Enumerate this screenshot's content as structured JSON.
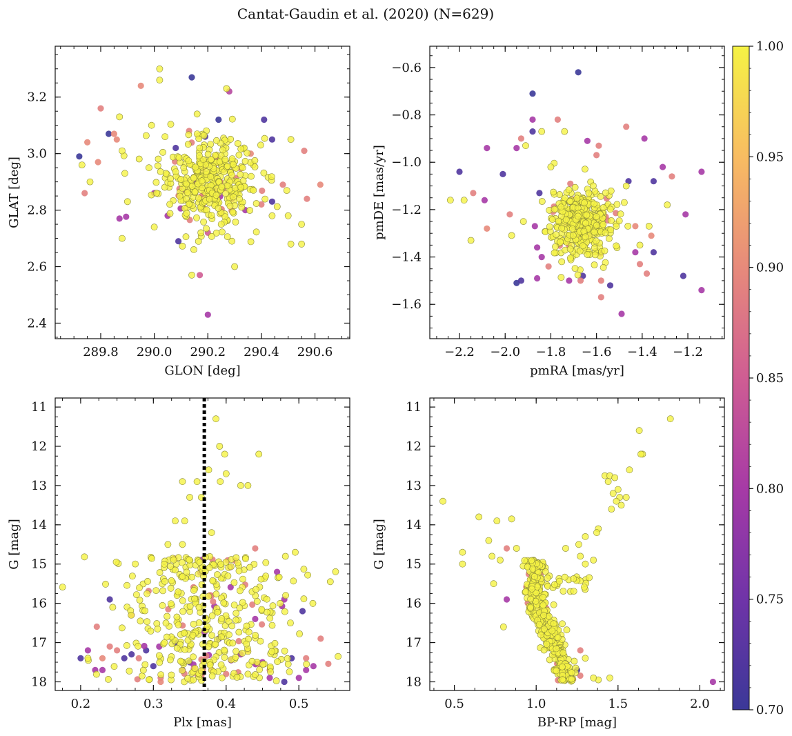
{
  "figure": {
    "title": "Cantat-Gaudin et al. (2020) (N=629)"
  },
  "colorbar": {
    "min": 0.7,
    "max": 1.0,
    "ticks": [
      "0.70",
      "0.75",
      "0.80",
      "0.85",
      "0.90",
      "0.95",
      "1.00"
    ],
    "colors": [
      "#3b3898",
      "#6f34a8",
      "#a63aa6",
      "#cf5d93",
      "#e78a7b",
      "#f8bc62",
      "#f5f244"
    ]
  },
  "chart_data": [
    {
      "id": "glon-glat",
      "type": "scatter",
      "title": "",
      "xlabel": "GLON [deg]",
      "ylabel": "GLAT [deg]",
      "xlim": [
        289.63,
        290.73
      ],
      "ylim": [
        2.345,
        3.38
      ],
      "xticks": [
        289.8,
        290.0,
        290.2,
        290.4,
        290.6
      ],
      "xtick_labels": [
        "289.8",
        "290.0",
        "290.2",
        "290.4",
        "290.6"
      ],
      "yticks": [
        2.4,
        2.6,
        2.8,
        3.0,
        3.2
      ],
      "ytick_labels": [
        "2.4",
        "2.6",
        "2.8",
        "3.0",
        "3.2"
      ],
      "invert_y": false,
      "points": [
        [
          290.14,
          3.27,
          0.7
        ],
        [
          290.02,
          3.3,
          1.0
        ],
        [
          290.02,
          3.26,
          1.0
        ],
        [
          289.95,
          3.24,
          0.9
        ],
        [
          290.27,
          3.23,
          1.0
        ],
        [
          290.28,
          3.22,
          0.82
        ],
        [
          289.8,
          3.16,
          0.89
        ],
        [
          289.87,
          3.13,
          1.0
        ],
        [
          289.99,
          3.1,
          1.0
        ],
        [
          290.16,
          3.14,
          1.0
        ],
        [
          290.24,
          3.12,
          0.7
        ],
        [
          290.41,
          3.12,
          0.72
        ],
        [
          289.83,
          3.07,
          0.7
        ],
        [
          289.85,
          3.07,
          0.9
        ],
        [
          289.75,
          3.04,
          0.9
        ],
        [
          289.86,
          3.05,
          0.9
        ],
        [
          290.04,
          3.06,
          1.0
        ],
        [
          290.19,
          3.06,
          0.72
        ],
        [
          290.44,
          3.05,
          0.72
        ],
        [
          290.51,
          3.05,
          1.0
        ],
        [
          289.72,
          2.99,
          0.7
        ],
        [
          289.88,
          3.01,
          1.0
        ],
        [
          290.56,
          3.01,
          0.89
        ],
        [
          289.79,
          2.97,
          0.9
        ],
        [
          289.73,
          2.96,
          1.0
        ],
        [
          289.76,
          2.9,
          1.0
        ],
        [
          289.89,
          2.93,
          1.0
        ],
        [
          290.08,
          3.02,
          0.72
        ],
        [
          289.74,
          2.86,
          0.89
        ],
        [
          289.9,
          2.83,
          1.0
        ],
        [
          289.87,
          2.77,
          0.8
        ],
        [
          290.62,
          2.89,
          0.9
        ],
        [
          290.57,
          2.84,
          0.89
        ],
        [
          290.44,
          2.83,
          0.72
        ],
        [
          290.44,
          2.78,
          1.0
        ],
        [
          290.5,
          2.78,
          1.0
        ],
        [
          290.55,
          2.75,
          1.0
        ],
        [
          290.09,
          2.69,
          0.72
        ],
        [
          290.2,
          2.72,
          0.85
        ],
        [
          290.3,
          2.6,
          1.0
        ],
        [
          290.14,
          2.57,
          1.0
        ],
        [
          290.17,
          2.57,
          0.85
        ],
        [
          290.2,
          2.43,
          0.8
        ],
        [
          289.88,
          2.7,
          1.0
        ],
        [
          290.55,
          2.68,
          1.0
        ],
        [
          290.51,
          2.68,
          1.0
        ],
        [
          290.05,
          2.78,
          0.8
        ],
        [
          290.34,
          2.8,
          0.8
        ],
        [
          290.4,
          2.82,
          0.89
        ],
        [
          290.13,
          3.08,
          0.89
        ],
        [
          290.36,
          3.0,
          0.9
        ],
        [
          290.48,
          2.89,
          0.89
        ],
        [
          290.0,
          2.86,
          0.8
        ],
        [
          290.29,
          2.69,
          1.0
        ],
        [
          290.25,
          2.75,
          1.0
        ],
        [
          290.37,
          2.87,
          1.0
        ],
        [
          290.33,
          2.95,
          1.0
        ],
        [
          290.11,
          2.95,
          1.0
        ],
        [
          289.98,
          2.95,
          1.0
        ],
        [
          290.0,
          2.74,
          1.0
        ]
      ],
      "cluster": {
        "cx": 290.2,
        "cy": 2.9,
        "sx": 0.09,
        "sy": 0.08,
        "n": 380
      }
    },
    {
      "id": "pm",
      "type": "scatter",
      "title": "",
      "xlabel": "pmRA [mas/yr]",
      "ylabel": "pmDE [mas/yr]",
      "xlim": [
        -2.33,
        -1.04
      ],
      "ylim": [
        -1.745,
        -0.51
      ],
      "xticks": [
        -2.2,
        -2.0,
        -1.8,
        -1.6,
        -1.4,
        -1.2
      ],
      "xtick_labels": [
        "−2.2",
        "−2.0",
        "−1.8",
        "−1.6",
        "−1.4",
        "−1.2"
      ],
      "yticks": [
        -1.6,
        -1.4,
        -1.2,
        -1.0,
        -0.8,
        -0.6
      ],
      "ytick_labels": [
        "−1.6",
        "−1.4",
        "−1.2",
        "−1.0",
        "−0.8",
        "−0.6"
      ],
      "invert_y": false,
      "points": [
        [
          -1.68,
          -0.62,
          0.7
        ],
        [
          -1.88,
          -0.71,
          0.7
        ],
        [
          -1.88,
          -0.82,
          0.8
        ],
        [
          -1.77,
          -0.82,
          0.89
        ],
        [
          -1.88,
          -0.87,
          0.72
        ],
        [
          -1.84,
          -0.87,
          1.0
        ],
        [
          -1.74,
          -0.87,
          1.0
        ],
        [
          -1.93,
          -0.9,
          0.89
        ],
        [
          -1.64,
          -0.91,
          0.8
        ],
        [
          -1.59,
          -0.93,
          0.89
        ],
        [
          -1.47,
          -0.85,
          0.89
        ],
        [
          -1.39,
          -0.9,
          0.8
        ],
        [
          -2.08,
          -0.94,
          0.8
        ],
        [
          -1.95,
          -0.94,
          0.8
        ],
        [
          -1.91,
          -0.93,
          1.0
        ],
        [
          -2.2,
          -1.04,
          0.72
        ],
        [
          -2.01,
          -1.05,
          0.72
        ],
        [
          -1.8,
          -1.02,
          1.0
        ],
        [
          -1.31,
          -1.02,
          0.8
        ],
        [
          -1.27,
          -1.06,
          0.89
        ],
        [
          -1.14,
          -1.04,
          0.8
        ],
        [
          -1.35,
          -1.08,
          0.72
        ],
        [
          -2.24,
          -1.16,
          1.0
        ],
        [
          -2.18,
          -1.16,
          1.0
        ],
        [
          -2.14,
          -1.13,
          0.89
        ],
        [
          -2.09,
          -1.16,
          0.8
        ],
        [
          -2.08,
          -1.28,
          0.9
        ],
        [
          -2.15,
          -1.33,
          1.0
        ],
        [
          -1.98,
          -1.22,
          0.89
        ],
        [
          -1.92,
          -1.25,
          1.0
        ],
        [
          -1.21,
          -1.22,
          0.8
        ],
        [
          -1.29,
          -1.18,
          1.0
        ],
        [
          -1.36,
          -1.31,
          0.9
        ],
        [
          -1.37,
          -1.27,
          1.0
        ],
        [
          -1.35,
          -1.38,
          0.72
        ],
        [
          -1.43,
          -1.38,
          0.8
        ],
        [
          -1.41,
          -1.43,
          0.89
        ],
        [
          -1.38,
          -1.47,
          0.89
        ],
        [
          -1.22,
          -1.48,
          0.72
        ],
        [
          -1.14,
          -1.54,
          0.8
        ],
        [
          -1.49,
          -1.64,
          0.8
        ],
        [
          -1.58,
          -1.57,
          0.89
        ],
        [
          -1.54,
          -1.52,
          0.72
        ],
        [
          -1.58,
          -1.5,
          0.89
        ],
        [
          -1.67,
          -1.5,
          0.89
        ],
        [
          -1.72,
          -1.5,
          0.8
        ],
        [
          -1.66,
          -1.48,
          0.72
        ],
        [
          -1.86,
          -1.49,
          0.8
        ],
        [
          -1.93,
          -1.5,
          0.72
        ],
        [
          -1.95,
          -1.51,
          0.7
        ],
        [
          -1.81,
          -1.44,
          0.89
        ],
        [
          -1.84,
          -1.4,
          0.8
        ],
        [
          -1.86,
          -1.36,
          0.8
        ],
        [
          -1.87,
          -1.27,
          0.8
        ],
        [
          -1.43,
          -1.27,
          0.9
        ],
        [
          -1.41,
          -1.35,
          1.0
        ],
        [
          -1.46,
          -1.08,
          0.72
        ],
        [
          -1.6,
          -0.97,
          0.89
        ],
        [
          -1.47,
          -1.1,
          1.0
        ],
        [
          -1.85,
          -1.13,
          0.72
        ]
      ],
      "cluster": {
        "cx": -1.67,
        "cy": -1.25,
        "sx": 0.075,
        "sy": 0.07,
        "n": 380
      }
    },
    {
      "id": "plx-g",
      "type": "scatter",
      "title": "",
      "xlabel": "Plx [mas]",
      "ylabel": "G [mag]",
      "xlim": [
        0.165,
        0.57
      ],
      "ylim": [
        18.22,
        10.77
      ],
      "xticks": [
        0.2,
        0.3,
        0.4,
        0.5
      ],
      "xtick_labels": [
        "0.2",
        "0.3",
        "0.4",
        "0.5"
      ],
      "yticks": [
        11,
        12,
        13,
        14,
        15,
        16,
        17,
        18
      ],
      "ytick_labels": [
        "11",
        "12",
        "13",
        "14",
        "15",
        "16",
        "17",
        "18"
      ],
      "invert_y": true,
      "vline": {
        "x": 0.37,
        "style": "dotted",
        "color": "#000000"
      },
      "points": [
        [
          0.386,
          11.3,
          1.0
        ],
        [
          0.391,
          12.0,
          1.0
        ],
        [
          0.398,
          12.2,
          1.0
        ],
        [
          0.445,
          12.2,
          1.0
        ],
        [
          0.36,
          12.9,
          1.0
        ],
        [
          0.34,
          12.9,
          1.0
        ],
        [
          0.376,
          12.6,
          1.0
        ],
        [
          0.392,
          12.9,
          1.0
        ],
        [
          0.4,
          12.7,
          1.0
        ],
        [
          0.42,
          13.0,
          1.0
        ],
        [
          0.43,
          13.0,
          1.0
        ],
        [
          0.35,
          13.3,
          1.0
        ],
        [
          0.33,
          13.9,
          1.0
        ],
        [
          0.343,
          13.9,
          1.0
        ],
        [
          0.366,
          13.3,
          1.0
        ],
        [
          0.38,
          14.2,
          1.0
        ],
        [
          0.34,
          14.5,
          1.0
        ],
        [
          0.32,
          14.5,
          1.0
        ],
        [
          0.44,
          14.6,
          0.89
        ],
        [
          0.495,
          14.7,
          1.0
        ],
        [
          0.47,
          15.2,
          0.8
        ],
        [
          0.24,
          15.9,
          0.72
        ],
        [
          0.21,
          17.4,
          1.0
        ],
        [
          0.2,
          17.4,
          0.72
        ],
        [
          0.22,
          17.7,
          0.8
        ],
        [
          0.23,
          17.7,
          0.8
        ],
        [
          0.21,
          17.2,
          0.8
        ],
        [
          0.25,
          17.2,
          0.89
        ],
        [
          0.27,
          16.3,
          0.9
        ],
        [
          0.31,
          18.0,
          0.9
        ],
        [
          0.3,
          17.6,
          0.72
        ],
        [
          0.48,
          18.0,
          0.72
        ],
        [
          0.5,
          17.9,
          0.8
        ],
        [
          0.51,
          17.7,
          0.8
        ],
        [
          0.53,
          16.9,
          0.89
        ],
        [
          0.52,
          17.6,
          0.8
        ],
        [
          0.49,
          17.4,
          0.72
        ],
        [
          0.46,
          17.7,
          0.89
        ],
        [
          0.42,
          17.3,
          0.8
        ],
        [
          0.4,
          17.8,
          0.89
        ],
        [
          0.36,
          17.8,
          0.89
        ],
        [
          0.34,
          17.7,
          0.8
        ],
        [
          0.29,
          17.2,
          0.72
        ],
        [
          0.26,
          17.4,
          0.72
        ],
        [
          0.28,
          17.4,
          0.89
        ],
        [
          0.33,
          17.0,
          0.72
        ],
        [
          0.39,
          16.9,
          0.72
        ],
        [
          0.44,
          16.4,
          0.8
        ],
        [
          0.48,
          15.9,
          0.8
        ],
        [
          0.505,
          16.2,
          0.72
        ],
        [
          0.35,
          17.5,
          0.72
        ],
        [
          0.31,
          17.9,
          0.89
        ],
        [
          0.43,
          17.2,
          0.89
        ],
        [
          0.45,
          17.5,
          0.8
        ],
        [
          0.24,
          17.1,
          0.89
        ],
        [
          0.23,
          17.4,
          0.9
        ],
        [
          0.51,
          17.4,
          0.89
        ],
        [
          0.27,
          17.3,
          0.72
        ],
        [
          0.46,
          17.9,
          0.8
        ],
        [
          0.38,
          17.7,
          0.89
        ]
      ],
      "cluster": {
        "cx": 0.37,
        "cy": 16.2,
        "sx": 0.062,
        "sy": 0.9,
        "n": 400,
        "gmin": 14.8,
        "gmax": 18.0
      }
    },
    {
      "id": "cmd",
      "type": "scatter",
      "title": "",
      "xlabel": "BP-RP [mag]",
      "ylabel": "G [mag]",
      "xlim": [
        0.35,
        2.15
      ],
      "ylim": [
        18.22,
        10.77
      ],
      "xticks": [
        0.5,
        1.0,
        1.5,
        2.0
      ],
      "xtick_labels": [
        "0.5",
        "1.0",
        "1.5",
        "2.0"
      ],
      "yticks": [
        11,
        12,
        13,
        14,
        15,
        16,
        17,
        18
      ],
      "ytick_labels": [
        "11",
        "12",
        "13",
        "14",
        "15",
        "16",
        "17",
        "18"
      ],
      "invert_y": true,
      "points": [
        [
          1.82,
          11.3,
          1.0
        ],
        [
          1.63,
          11.6,
          1.0
        ],
        [
          1.65,
          12.2,
          1.0
        ],
        [
          1.64,
          12.2,
          1.0
        ],
        [
          1.57,
          12.6,
          1.0
        ],
        [
          1.42,
          12.75,
          1.0
        ],
        [
          1.45,
          12.75,
          1.0
        ],
        [
          1.48,
          12.8,
          1.0
        ],
        [
          1.44,
          12.9,
          1.0
        ],
        [
          1.5,
          13.1,
          1.0
        ],
        [
          1.47,
          13.2,
          1.0
        ],
        [
          1.51,
          13.3,
          1.0
        ],
        [
          1.55,
          13.3,
          1.0
        ],
        [
          1.49,
          13.4,
          1.0
        ],
        [
          1.52,
          13.5,
          1.0
        ],
        [
          1.46,
          13.6,
          1.0
        ],
        [
          1.38,
          14.1,
          1.0
        ],
        [
          1.37,
          14.2,
          1.0
        ],
        [
          1.3,
          14.3,
          1.0
        ],
        [
          1.26,
          14.5,
          1.0
        ],
        [
          1.18,
          14.6,
          1.0
        ],
        [
          1.27,
          14.8,
          1.0
        ],
        [
          1.35,
          14.9,
          1.0
        ],
        [
          1.3,
          15.0,
          1.0
        ],
        [
          0.43,
          13.4,
          1.0
        ],
        [
          0.65,
          13.8,
          1.0
        ],
        [
          0.76,
          13.9,
          1.0
        ],
        [
          0.85,
          13.85,
          1.0
        ],
        [
          0.71,
          14.4,
          1.0
        ],
        [
          0.55,
          14.7,
          1.0
        ],
        [
          0.55,
          15.0,
          1.0
        ],
        [
          0.73,
          14.8,
          1.0
        ],
        [
          0.78,
          14.9,
          1.0
        ],
        [
          0.82,
          14.6,
          0.89
        ],
        [
          0.88,
          14.6,
          1.0
        ],
        [
          0.74,
          15.5,
          1.0
        ],
        [
          0.82,
          15.9,
          0.8
        ],
        [
          0.8,
          16.6,
          1.0
        ],
        [
          2.08,
          18.0,
          0.8
        ],
        [
          1.45,
          17.9,
          1.0
        ],
        [
          1.38,
          17.95,
          1.0
        ],
        [
          1.25,
          17.7,
          0.72
        ],
        [
          1.27,
          17.2,
          0.89
        ],
        [
          1.05,
          16.2,
          0.72
        ],
        [
          1.3,
          17.4,
          1.0
        ],
        [
          1.35,
          17.9,
          1.0
        ],
        [
          1.2,
          17.8,
          0.72
        ],
        [
          1.15,
          17.3,
          0.89
        ]
      ],
      "cluster": {
        "type": "cmd",
        "n": 420
      }
    }
  ]
}
